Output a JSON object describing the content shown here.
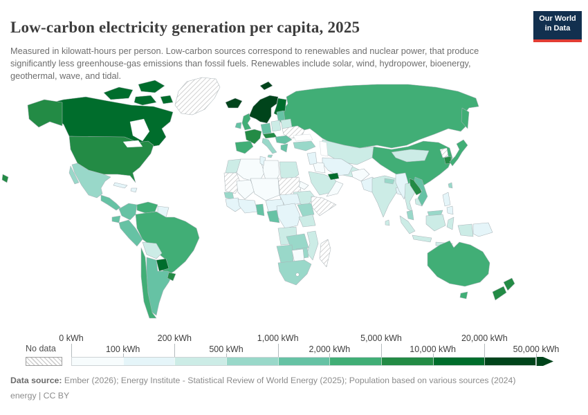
{
  "header": {
    "title": "Low-carbon electricity generation per capita, 2025",
    "subtitle": "Measured in kilowatt-hours per person. Low-carbon sources correspond to renewables and nuclear power, that produce significantly less greenhouse-gas emissions than fossil fuels. Renewables include solar, wind, hydropower, bioenergy, geothermal, wave, and tidal.",
    "logo": {
      "line1": "Our World",
      "line2": "in Data",
      "bg_color": "#12304f",
      "accent_color": "#e23d33"
    }
  },
  "legend": {
    "no_data_label": "No data",
    "tick_labels": [
      "0 kWh",
      "100 kWh",
      "200 kWh",
      "500 kWh",
      "1,000 kWh",
      "2,000 kWh",
      "5,000 kWh",
      "10,000 kWh",
      "20,000 kWh",
      "50,000 kWh"
    ]
  },
  "footer": {
    "label": "Data source:",
    "sources": " Ember (2026); Energy Institute - Statistical Review of World Energy (2025); Population based on various sources (2024)",
    "line2": "energy | CC BY"
  },
  "chart_data": {
    "type": "heatmap",
    "subtype": "choropleth-world-map",
    "title": "Low-carbon electricity generation per capita, 2025",
    "unit": "kWh per person",
    "year": "2025",
    "scale": "log-binned",
    "bin_edges_kwh": [
      0,
      100,
      200,
      500,
      1000,
      2000,
      5000,
      10000,
      20000,
      50000
    ],
    "no_data": {
      "label": "No data",
      "style": "hatched"
    },
    "legend_position": "bottom",
    "bins": [
      {
        "range": "0-100 kWh",
        "color": "#f7fcfd"
      },
      {
        "range": "100-200 kWh",
        "color": "#e5f5f9"
      },
      {
        "range": "200-500 kWh",
        "color": "#ccece6"
      },
      {
        "range": "500-1,000 kWh",
        "color": "#99d8c9"
      },
      {
        "range": "1,000-2,000 kWh",
        "color": "#66c2a4"
      },
      {
        "range": "2,000-5,000 kWh",
        "color": "#41ae76"
      },
      {
        "range": "5,000-10,000 kWh",
        "color": "#238b45"
      },
      {
        "range": "10,000-20,000 kWh",
        "color": "#006d2c"
      },
      {
        "range": "20,000-50,000 kWh",
        "color": "#00441b"
      },
      {
        "range": "50,000+ kWh",
        "color": "#00441b"
      }
    ],
    "countries": {
      "greenland": {
        "name": "Greenland",
        "bin": "no-data"
      },
      "canada": {
        "name": "Canada",
        "bin": 7
      },
      "united-states": {
        "name": "United States",
        "bin": 6
      },
      "hawaii": {
        "name": "Hawaii (US)",
        "bin": 6
      },
      "mexico": {
        "name": "Mexico",
        "bin": 3
      },
      "central-america": {
        "name": "Central America",
        "bin": 4
      },
      "cuba": {
        "name": "Cuba",
        "bin": 1
      },
      "hispaniola": {
        "name": "Hispaniola",
        "bin": 1
      },
      "colombia": {
        "name": "Colombia",
        "bin": 4
      },
      "venezuela": {
        "name": "Venezuela",
        "bin": 5
      },
      "guyana-suriname": {
        "name": "Guyana & Suriname",
        "bin": 1
      },
      "ecuador": {
        "name": "Ecuador",
        "bin": 4
      },
      "peru": {
        "name": "Peru",
        "bin": 4
      },
      "brazil": {
        "name": "Brazil",
        "bin": 5
      },
      "bolivia": {
        "name": "Bolivia",
        "bin": 2
      },
      "paraguay": {
        "name": "Paraguay",
        "bin": 7
      },
      "chile": {
        "name": "Chile",
        "bin": 5
      },
      "argentina": {
        "name": "Argentina",
        "bin": 4
      },
      "uruguay": {
        "name": "Uruguay",
        "bin": 6
      },
      "iceland": {
        "name": "Iceland",
        "bin": 9
      },
      "svalbard": {
        "name": "Svalbard",
        "bin": 8
      },
      "norway-sweden": {
        "name": "Norway & Sweden",
        "bin": 8
      },
      "finland": {
        "name": "Finland",
        "bin": 7
      },
      "denmark": {
        "name": "Denmark",
        "bin": 6
      },
      "united-kingdom": {
        "name": "United Kingdom",
        "bin": 5
      },
      "ireland": {
        "name": "Ireland",
        "bin": 4
      },
      "france": {
        "name": "France",
        "bin": 6
      },
      "spain-portugal": {
        "name": "Spain & Portugal",
        "bin": 5
      },
      "germany": {
        "name": "Germany",
        "bin": 4
      },
      "alpine-europe": {
        "name": "Switzerland & Austria",
        "bin": 6
      },
      "italy": {
        "name": "Italy",
        "bin": 3
      },
      "poland": {
        "name": "Poland",
        "bin": 2
      },
      "baltic-states": {
        "name": "Baltic states",
        "bin": 4
      },
      "belarus": {
        "name": "Belarus",
        "bin": 2
      },
      "ukraine": {
        "name": "Ukraine",
        "bin": "no-data"
      },
      "balkans": {
        "name": "Hungary, Romania & Balkans",
        "bin": 4
      },
      "greece": {
        "name": "Greece",
        "bin": 4
      },
      "turkey": {
        "name": "Turkey",
        "bin": 3
      },
      "russia": {
        "name": "Russia",
        "bin": 5
      },
      "kazakhstan": {
        "name": "Kazakhstan",
        "bin": 2
      },
      "central-asia": {
        "name": "Central Asia",
        "bin": 2
      },
      "afghanistan": {
        "name": "Afghanistan",
        "bin": 0
      },
      "pakistan": {
        "name": "Pakistan",
        "bin": 1
      },
      "india": {
        "name": "India",
        "bin": 2
      },
      "nepal": {
        "name": "Nepal",
        "bin": 3
      },
      "bhutan": {
        "name": "Bhutan",
        "bin": 7
      },
      "bangladesh": {
        "name": "Bangladesh",
        "bin": 1
      },
      "sri-lanka": {
        "name": "Sri Lanka",
        "bin": 2
      },
      "china": {
        "name": "China",
        "bin": 5
      },
      "mongolia": {
        "name": "Mongolia",
        "bin": 2
      },
      "north-korea": {
        "name": "North Korea",
        "bin": "no-data"
      },
      "south-korea": {
        "name": "South Korea",
        "bin": 6
      },
      "japan": {
        "name": "Japan",
        "bin": 5
      },
      "taiwan": {
        "name": "Taiwan",
        "bin": 3
      },
      "iran": {
        "name": "Iran",
        "bin": 1
      },
      "iraq": {
        "name": "Iraq",
        "bin": 0
      },
      "levant": {
        "name": "Levant",
        "bin": 1
      },
      "saudi-arabia": {
        "name": "Saudi Arabia",
        "bin": 2
      },
      "uae": {
        "name": "United Arab Emirates",
        "bin": 7
      },
      "oman-yemen": {
        "name": "Oman & Yemen",
        "bin": 0
      },
      "morocco": {
        "name": "Morocco",
        "bin": 2
      },
      "western-sahara-mauritania": {
        "name": "Western Sahara & Mauritania",
        "bin": "no-data"
      },
      "algeria": {
        "name": "Algeria",
        "bin": 0
      },
      "tunisia": {
        "name": "Tunisia",
        "bin": 1
      },
      "libya": {
        "name": "Libya",
        "bin": 0
      },
      "egypt": {
        "name": "Egypt",
        "bin": 2
      },
      "mali": {
        "name": "Mali",
        "bin": 0
      },
      "niger-chad": {
        "name": "Niger & Chad",
        "bin": 0
      },
      "senegal": {
        "name": "Senegal",
        "bin": 3
      },
      "west-africa-coast": {
        "name": "Guinea & Ivory Coast region",
        "bin": 1
      },
      "ghana": {
        "name": "Ghana",
        "bin": 4
      },
      "nigeria": {
        "name": "Nigeria",
        "bin": 1
      },
      "central-africa": {
        "name": "Cameroon & Central African Rep.",
        "bin": 1
      },
      "sudan": {
        "name": "Sudan & South Sudan",
        "bin": "no-data"
      },
      "eritrea": {
        "name": "Eritrea",
        "bin": 0
      },
      "ethiopia": {
        "name": "Ethiopia",
        "bin": 2
      },
      "somalia": {
        "name": "Somalia",
        "bin": "no-data"
      },
      "kenya-uganda": {
        "name": "Kenya & Uganda",
        "bin": 3
      },
      "tanzania": {
        "name": "Tanzania",
        "bin": 2
      },
      "drc": {
        "name": "Democratic Republic of Congo",
        "bin": 1
      },
      "gabon-congo": {
        "name": "Gabon & Congo",
        "bin": 4
      },
      "angola": {
        "name": "Angola",
        "bin": 2
      },
      "zambia": {
        "name": "Zambia",
        "bin": 3
      },
      "zimbabwe": {
        "name": "Zimbabwe",
        "bin": 3
      },
      "mozambique": {
        "name": "Mozambique",
        "bin": 2
      },
      "namibia": {
        "name": "Namibia",
        "bin": 3
      },
      "botswana": {
        "name": "Botswana",
        "bin": 0
      },
      "south-africa": {
        "name": "South Africa",
        "bin": 3
      },
      "madagascar": {
        "name": "Madagascar",
        "bin": "no-data"
      },
      "myanmar": {
        "name": "Myanmar",
        "bin": 1
      },
      "thailand": {
        "name": "Thailand",
        "bin": 2
      },
      "laos": {
        "name": "Laos",
        "bin": 6
      },
      "cambodia": {
        "name": "Cambodia",
        "bin": 2
      },
      "vietnam": {
        "name": "Vietnam",
        "bin": 4
      },
      "malaysia": {
        "name": "Malaysia",
        "bin": 3
      },
      "indonesia": {
        "name": "Indonesia",
        "bin": 2
      },
      "philippines": {
        "name": "Philippines",
        "bin": 1
      },
      "west-papua": {
        "name": "Indonesia (Papua)",
        "bin": 2
      },
      "papua-new-guinea": {
        "name": "Papua New Guinea",
        "bin": 1
      },
      "australia": {
        "name": "Australia",
        "bin": 5
      },
      "new-zealand": {
        "name": "New Zealand",
        "bin": 6
      }
    }
  }
}
